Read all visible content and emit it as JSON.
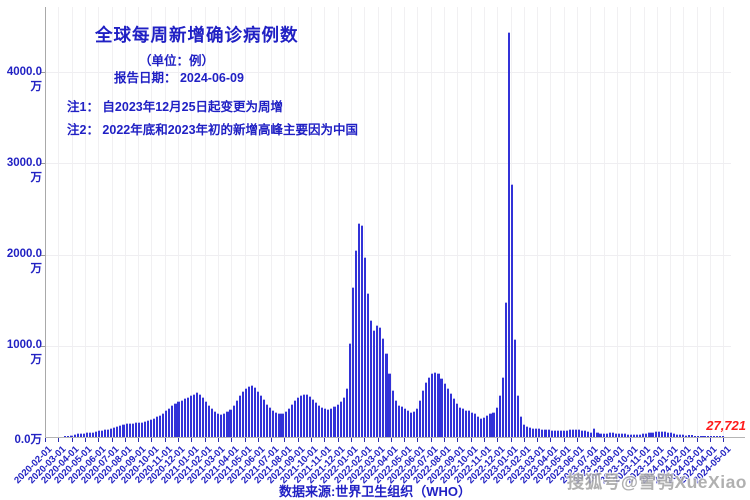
{
  "header": {
    "title": "全球每周新增确诊病例数",
    "unit_line": "（单位：例）",
    "report_date_line": "报告日期：  2024-06-09",
    "note1": "注1： 自2023年12月25日起变更为周增",
    "note2": "注2： 2022年底和2023年初的新增高峰主要因为中国"
  },
  "footer": {
    "source": "数据来源:世界卫生组织（WHO）"
  },
  "watermark": "搜狐号@雪鸮XueXiao",
  "last_value_label": "27,721",
  "colors": {
    "bar": "#3232d8",
    "bar_cap": "#b9b9ee",
    "text_blue": "#2020c4",
    "label_red": "#ff1a1a",
    "grid": "#f0eff2",
    "axis": "#a9a9a9",
    "watermark": "#a3a3a3"
  },
  "chart_data": {
    "type": "bar",
    "title": "全球每周新增确诊病例数",
    "unit_note": "values in 万 (10,000 cases) per week",
    "ylabel_ticks": [
      "0.0万",
      "1000.0万",
      "2000.0万",
      "3000.0万",
      "4000.0万"
    ],
    "y_tick_values_wan": [
      0,
      1000,
      2000,
      3000,
      4000
    ],
    "ylim_wan": [
      0,
      4715
    ],
    "grid": true,
    "x_month_labels": [
      "2020-02-01",
      "2020-03-01",
      "2020-04-01",
      "2020-05-01",
      "2020-06-01",
      "2020-07-01",
      "2020-08-01",
      "2020-09-01",
      "2020-10-01",
      "2020-11-01",
      "2020-12-01",
      "2021-01-01",
      "2021-02-01",
      "2021-03-01",
      "2021-04-01",
      "2021-05-01",
      "2021-06-01",
      "2021-07-01",
      "2021-08-01",
      "2021-09-01",
      "2021-10-01",
      "2021-11-01",
      "2021-12-01",
      "2022-01-01",
      "2022-02-01",
      "2022-03-01",
      "2022-04-01",
      "2022-05-01",
      "2022-06-01",
      "2022-07-01",
      "2022-08-01",
      "2022-09-01",
      "2022-10-01",
      "2022-11-01",
      "2022-12-01",
      "2023-01-01",
      "2023-02-01",
      "2023-03-01",
      "2023-04-01",
      "2023-05-01",
      "2023-06-01",
      "2023-07-01",
      "2023-08-01",
      "2023-09-01",
      "2023-10-01",
      "2023-11-01",
      "2023-12-01",
      "2024-01-01",
      "2024-02-01",
      "2024-03-01",
      "2024-04-01",
      "2024-05-01"
    ],
    "weekly_start_date": "2020-02-03",
    "weekly_values_wan": [
      3.5,
      3.2,
      1.5,
      1,
      1.5,
      3,
      7,
      15,
      26,
      36,
      42,
      46,
      48,
      52,
      56,
      60,
      65,
      72,
      78,
      85,
      92,
      100,
      110,
      122,
      133,
      143,
      150,
      155,
      158,
      160,
      163,
      168,
      175,
      185,
      196,
      210,
      225,
      243,
      264,
      292,
      322,
      352,
      378,
      396,
      410,
      424,
      440,
      456,
      474,
      492,
      472,
      438,
      398,
      356,
      318,
      289,
      268,
      257,
      262,
      281,
      312,
      356,
      406,
      456,
      502,
      540,
      564,
      571,
      550,
      509,
      461,
      412,
      367,
      329,
      297,
      273,
      259,
      263,
      286,
      321,
      361,
      401,
      436,
      461,
      475,
      468,
      446,
      416,
      386,
      356,
      331,
      315,
      310,
      318,
      336,
      361,
      391,
      441,
      536,
      1031,
      1646,
      2052,
      2347,
      2326,
      1976,
      1581,
      1286,
      1176,
      1231,
      1206,
      1086,
      921,
      701,
      516,
      406,
      351,
      341,
      321,
      296,
      276,
      286,
      321,
      406,
      516,
      601,
      661,
      701,
      716,
      701,
      646,
      591,
      536,
      481,
      431,
      371,
      331,
      321,
      296,
      296,
      276,
      266,
      231,
      211,
      221,
      241,
      266,
      276,
      331,
      461,
      661,
      1481,
      4441,
      2771,
      1076,
      461,
      226,
      141,
      118,
      108,
      102,
      98,
      95,
      92,
      88,
      85,
      82,
      80,
      78,
      76,
      78,
      82,
      88,
      92,
      90,
      85,
      80,
      72,
      65,
      58,
      95,
      55,
      48,
      45,
      48,
      52,
      50,
      46,
      44,
      42,
      40,
      38,
      36,
      35,
      36,
      38,
      42,
      48,
      55,
      60,
      65,
      68,
      70,
      65,
      58,
      50,
      44,
      38,
      33,
      28,
      24,
      20,
      17,
      15,
      13,
      11.5,
      10,
      9,
      8,
      7,
      6.5,
      6,
      5.5,
      5,
      4.5,
      4,
      3.5,
      2.7721
    ],
    "last_week_cases": 27721,
    "annotations": [
      "27,721 labels the final weekly bar (week of 2024-06-03)"
    ]
  }
}
